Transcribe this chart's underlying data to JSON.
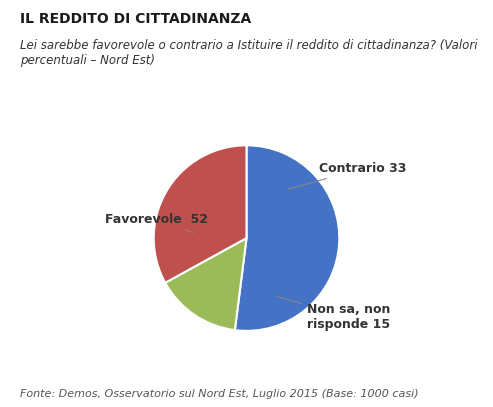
{
  "title": "IL REDDITO DI CITTADINANZA",
  "subtitle": "Lei sarebbe favorevole o contrario a Istituire il reddito di cittadinanza? (Valori\npercentuali – Nord Est)",
  "footnote": "Fonte: Demos, Osservatorio sul Nord Est, Luglio 2015 (Base: 1000 casi)",
  "slices": [
    52,
    15,
    33
  ],
  "labels": [
    "Favorevole  52",
    "Non sa, non\nrisponde 15",
    "Contrario 33"
  ],
  "colors": [
    "#4472C4",
    "#9BBB59",
    "#C0504D"
  ],
  "startangle": 90,
  "background_color": "#FFFFFF",
  "label_fontsize": 9,
  "title_fontsize": 10,
  "subtitle_fontsize": 8.5,
  "footnote_fontsize": 8
}
